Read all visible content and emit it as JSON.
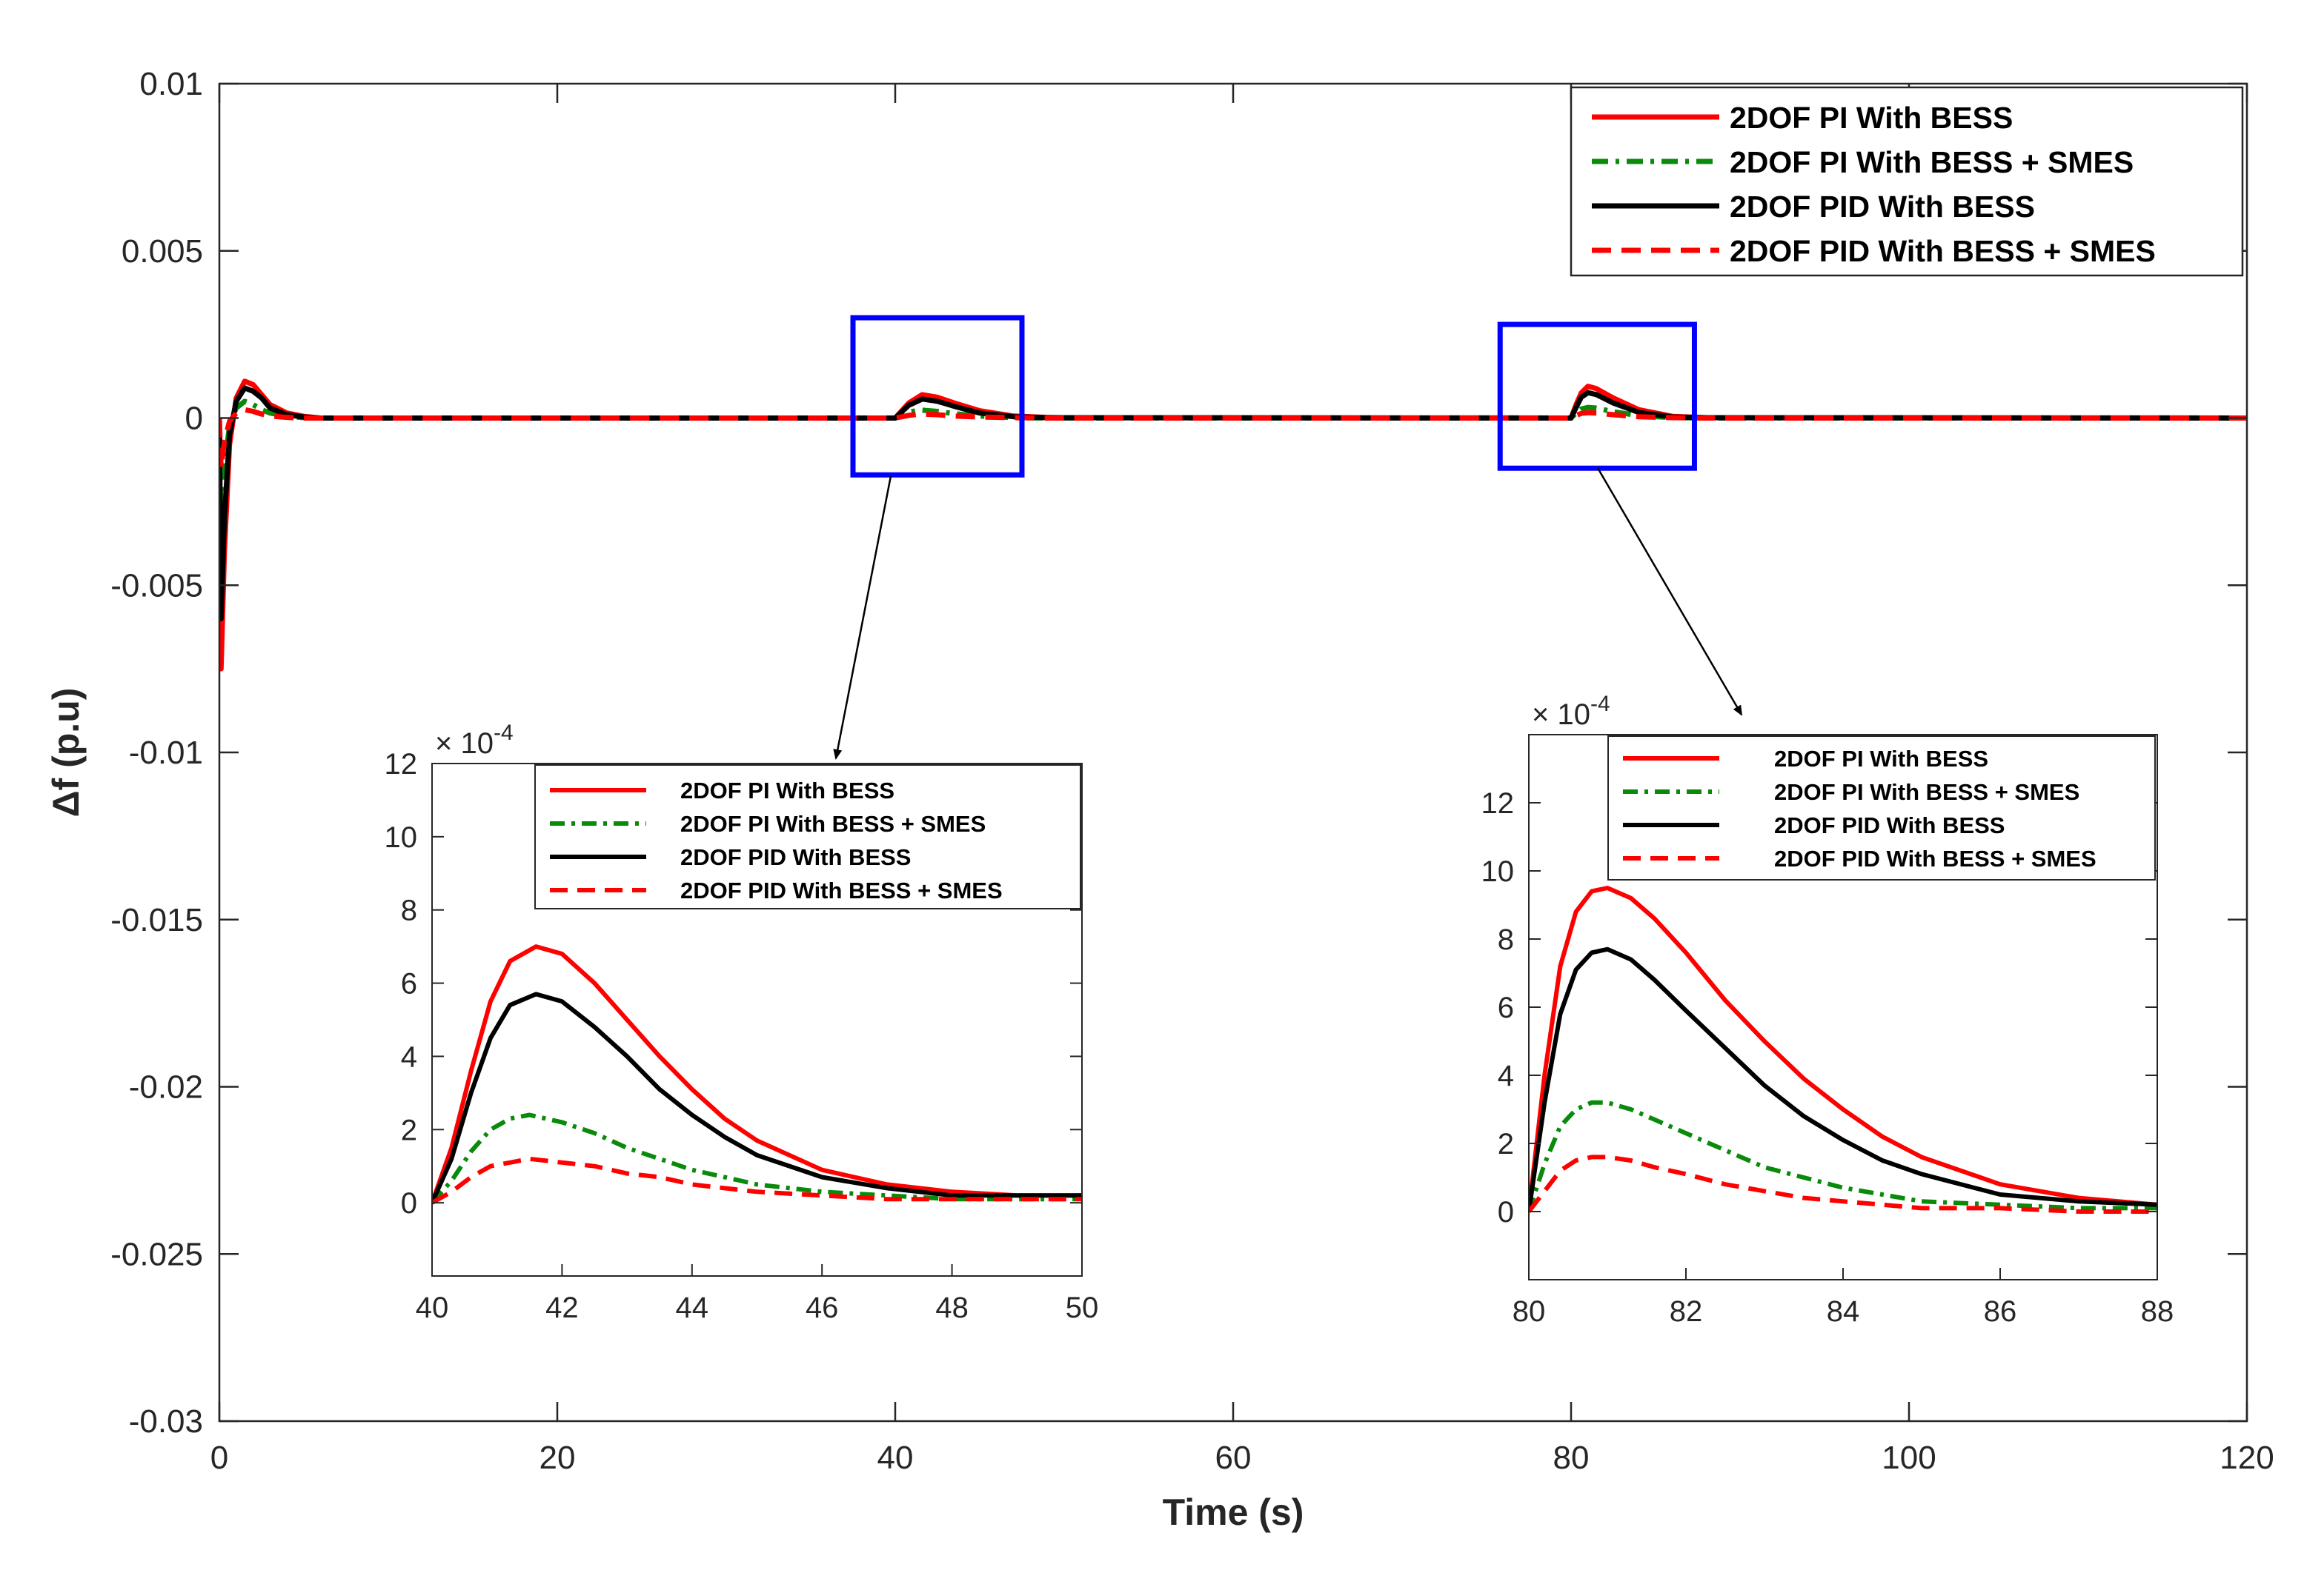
{
  "colors": {
    "red": "#ff0000",
    "green": "#0a8a0a",
    "black": "#000000",
    "axis": "#262626",
    "zoom_box": "#0000ff"
  },
  "chart_data": [
    {
      "type": "line",
      "title": "",
      "xlabel": "Time (s)",
      "ylabel": "Δf (p.u)",
      "xlim": [
        0,
        120
      ],
      "ylim": [
        -0.03,
        0.01
      ],
      "xticks": [
        0,
        20,
        40,
        60,
        80,
        100,
        120
      ],
      "xtick_labels": [
        "0",
        "20",
        "40",
        "60",
        "80",
        "100",
        "120"
      ],
      "yticks": [
        0.01,
        0.005,
        0,
        -0.005,
        -0.01,
        -0.015,
        -0.02,
        -0.025,
        -0.03
      ],
      "ytick_labels": [
        "0.01",
        "0.005",
        "0",
        "-0.005",
        "-0.01",
        "-0.015",
        "-0.02",
        "-0.025",
        "-0.03"
      ],
      "grid": false,
      "legend_position": "top-right",
      "series": [
        {
          "name": "2DOF PI With BESS",
          "color": "#ff0000",
          "style": "solid",
          "x": [
            0,
            0.1,
            0.3,
            0.6,
            1.0,
            1.5,
            2.0,
            2.5,
            3.0,
            4.0,
            5.0,
            6.0,
            8.0,
            40,
            40.8,
            41.6,
            42.5,
            43.5,
            45,
            47,
            49,
            50,
            80,
            80.3,
            80.6,
            81.0,
            81.5,
            82.5,
            84,
            86,
            88,
            120
          ],
          "y": [
            0,
            -0.0075,
            -0.004,
            -0.0008,
            0.0006,
            0.0011,
            0.001,
            0.0007,
            0.0004,
            0.00015,
            5e-05,
            0,
            0,
            0,
            0.00045,
            0.0007,
            0.00062,
            0.00045,
            0.00022,
            6e-05,
            2e-05,
            1e-05,
            0,
            0.0004,
            0.00075,
            0.00095,
            0.00088,
            0.0006,
            0.00025,
            5e-05,
            1e-05,
            0
          ]
        },
        {
          "name": "2DOF PI With BESS + SMES",
          "color": "#0a8a0a",
          "style": "dashdot",
          "x": [
            0,
            0.1,
            0.3,
            0.6,
            1.0,
            1.5,
            2.0,
            2.5,
            3.0,
            4.0,
            5.0,
            6.0,
            8.0,
            40,
            40.8,
            41.5,
            42.5,
            43.5,
            45,
            47,
            49,
            50,
            80,
            80.3,
            80.6,
            81.0,
            81.5,
            82.5,
            84,
            86,
            88,
            120
          ],
          "y": [
            0,
            -0.003,
            -0.0015,
            -0.0002,
            0.0003,
            0.0005,
            0.0004,
            0.00025,
            0.00015,
            5e-05,
            1e-05,
            0,
            0,
            0,
            0.00018,
            0.00024,
            0.0002,
            0.00013,
            6e-05,
            1e-05,
            0,
            0,
            0,
            0.00015,
            0.00027,
            0.00032,
            0.0003,
            0.00019,
            7e-05,
            1e-05,
            0,
            0
          ]
        },
        {
          "name": "2DOF PID With BESS",
          "color": "#000000",
          "style": "solid",
          "x": [
            0,
            0.1,
            0.3,
            0.6,
            1.0,
            1.5,
            2.0,
            2.5,
            3.0,
            4.0,
            5.0,
            6.0,
            8.0,
            40,
            40.8,
            41.6,
            42.5,
            43.5,
            45,
            47,
            49,
            50,
            80,
            80.3,
            80.6,
            81.0,
            81.5,
            82.5,
            84,
            86,
            88,
            120
          ],
          "y": [
            0,
            -0.006,
            -0.003,
            -0.0005,
            0.0005,
            0.0009,
            0.0008,
            0.0006,
            0.0003,
            0.0001,
            3e-05,
            0,
            0,
            0,
            0.00038,
            0.00057,
            0.0005,
            0.00035,
            0.00015,
            4e-05,
            1e-05,
            1e-05,
            0,
            0.00032,
            0.00062,
            0.00076,
            0.0007,
            0.00045,
            0.00017,
            3e-05,
            1e-05,
            0
          ]
        },
        {
          "name": "2DOF PID With BESS + SMES",
          "color": "#ff0000",
          "style": "dashed",
          "x": [
            0,
            0.1,
            0.3,
            0.6,
            1.0,
            1.5,
            2.0,
            2.5,
            3.0,
            4.0,
            5.0,
            6.0,
            8.0,
            40,
            40.8,
            41.5,
            42.5,
            43.5,
            45,
            47,
            49,
            50,
            80,
            80.3,
            80.6,
            81.0,
            81.5,
            82.5,
            84,
            86,
            88,
            120
          ],
          "y": [
            0,
            -0.0015,
            -0.0007,
            -0.0001,
            0.00015,
            0.00025,
            0.0002,
            0.00012,
            6e-05,
            2e-05,
            0,
            0,
            0,
            0,
            8e-05,
            0.00012,
            0.0001,
            6e-05,
            3e-05,
            1e-05,
            0,
            0,
            0,
            8e-05,
            0.00014,
            0.00016,
            0.00015,
            0.0001,
            4e-05,
            1e-05,
            0,
            0
          ]
        }
      ]
    },
    {
      "type": "line",
      "xlim": [
        40,
        50
      ],
      "ylim": [
        -0.0002,
        0.0012
      ],
      "xticks": [
        40,
        42,
        44,
        46,
        48,
        50
      ],
      "xtick_labels": [
        "40",
        "42",
        "44",
        "46",
        "48",
        "50"
      ],
      "yticks": [
        0,
        2,
        4,
        6,
        8,
        10,
        12
      ],
      "ytick_labels": [
        "0",
        "2",
        "4",
        "6",
        "8",
        "10",
        "12"
      ],
      "exponent_label": "× 10",
      "exponent_power": "-4",
      "legend_position": "top-right",
      "series": [
        {
          "name": "2DOF PI With BESS",
          "color": "#ff0000",
          "style": "solid",
          "x": [
            40,
            40.3,
            40.6,
            40.9,
            41.2,
            41.6,
            42.0,
            42.5,
            43.0,
            43.5,
            44,
            44.5,
            45,
            46,
            47,
            48,
            49,
            50
          ],
          "y": [
            0,
            0.00015,
            0.00036,
            0.00055,
            0.00066,
            0.0007,
            0.00068,
            0.0006,
            0.0005,
            0.0004,
            0.00031,
            0.00023,
            0.00017,
            9e-05,
            5e-05,
            3e-05,
            2e-05,
            2e-05
          ]
        },
        {
          "name": "2DOF PI With BESS + SMES",
          "color": "#0a8a0a",
          "style": "dashdot",
          "x": [
            40,
            40.3,
            40.6,
            40.9,
            41.2,
            41.5,
            42.0,
            42.5,
            43.0,
            43.5,
            44,
            44.5,
            45,
            46,
            47,
            48,
            49,
            50
          ],
          "y": [
            0,
            6e-05,
            0.00014,
            0.0002,
            0.00023,
            0.00024,
            0.00022,
            0.00019,
            0.00015,
            0.00012,
            9e-05,
            7e-05,
            5e-05,
            3e-05,
            2e-05,
            1e-05,
            1e-05,
            1e-05
          ]
        },
        {
          "name": "2DOF PID With BESS",
          "color": "#000000",
          "style": "solid",
          "x": [
            40,
            40.3,
            40.6,
            40.9,
            41.2,
            41.6,
            42.0,
            42.5,
            43.0,
            43.5,
            44,
            44.5,
            45,
            46,
            47,
            48,
            49,
            50
          ],
          "y": [
            0,
            0.00012,
            0.0003,
            0.00045,
            0.00054,
            0.00057,
            0.00055,
            0.00048,
            0.0004,
            0.00031,
            0.00024,
            0.00018,
            0.00013,
            7e-05,
            4e-05,
            2e-05,
            2e-05,
            2e-05
          ]
        },
        {
          "name": "2DOF PID With BESS + SMES",
          "color": "#ff0000",
          "style": "dashed",
          "x": [
            40,
            40.3,
            40.6,
            40.9,
            41.2,
            41.5,
            42.0,
            42.5,
            43.0,
            43.5,
            44,
            44.5,
            45,
            46,
            47,
            48,
            49,
            50
          ],
          "y": [
            0,
            3e-05,
            7e-05,
            0.0001,
            0.00011,
            0.00012,
            0.00011,
            0.0001,
            8e-05,
            7e-05,
            5e-05,
            4e-05,
            3e-05,
            2e-05,
            1e-05,
            1e-05,
            1e-05,
            1e-05
          ]
        }
      ]
    },
    {
      "type": "line",
      "xlim": [
        80,
        88
      ],
      "ylim": [
        -0.0002,
        0.0014
      ],
      "xticks": [
        80,
        82,
        84,
        86,
        88
      ],
      "xtick_labels": [
        "80",
        "82",
        "84",
        "86",
        "88"
      ],
      "yticks": [
        0,
        2,
        4,
        6,
        8,
        10,
        12
      ],
      "ytick_labels": [
        "0",
        "2",
        "4",
        "6",
        "8",
        "10",
        "12"
      ],
      "exponent_label": "× 10",
      "exponent_power": "-4",
      "legend_position": "top-right",
      "series": [
        {
          "name": "2DOF PI With BESS",
          "color": "#ff0000",
          "style": "solid",
          "x": [
            80,
            80.2,
            80.4,
            80.6,
            80.8,
            81.0,
            81.3,
            81.6,
            82.0,
            82.5,
            83,
            83.5,
            84,
            84.5,
            85,
            86,
            87,
            88
          ],
          "y": [
            0,
            0.0004,
            0.00072,
            0.00088,
            0.00094,
            0.00095,
            0.00092,
            0.00086,
            0.00076,
            0.00062,
            0.0005,
            0.00039,
            0.0003,
            0.00022,
            0.00016,
            8e-05,
            4e-05,
            2e-05
          ]
        },
        {
          "name": "2DOF PI With BESS + SMES",
          "color": "#0a8a0a",
          "style": "dashdot",
          "x": [
            80,
            80.2,
            80.4,
            80.6,
            80.8,
            81.0,
            81.3,
            81.6,
            82.0,
            82.5,
            83,
            83.5,
            84,
            84.5,
            85,
            86,
            87,
            88
          ],
          "y": [
            0,
            0.00014,
            0.00025,
            0.0003,
            0.00032,
            0.00032,
            0.0003,
            0.00027,
            0.00023,
            0.00018,
            0.00013,
            0.0001,
            7e-05,
            5e-05,
            3e-05,
            2e-05,
            1e-05,
            1e-05
          ]
        },
        {
          "name": "2DOF PID With BESS",
          "color": "#000000",
          "style": "solid",
          "x": [
            80,
            80.2,
            80.4,
            80.6,
            80.8,
            81.0,
            81.3,
            81.6,
            82.0,
            82.5,
            83,
            83.5,
            84,
            84.5,
            85,
            86,
            87,
            88
          ],
          "y": [
            0,
            0.00032,
            0.00058,
            0.00071,
            0.00076,
            0.00077,
            0.00074,
            0.00068,
            0.00059,
            0.00048,
            0.00037,
            0.00028,
            0.00021,
            0.00015,
            0.00011,
            5e-05,
            3e-05,
            2e-05
          ]
        },
        {
          "name": "2DOF PID With BESS + SMES",
          "color": "#ff0000",
          "style": "dashed",
          "x": [
            80,
            80.2,
            80.4,
            80.6,
            80.8,
            81.0,
            81.3,
            81.6,
            82.0,
            82.5,
            83,
            83.5,
            84,
            84.5,
            85,
            86,
            87,
            88
          ],
          "y": [
            0,
            6e-05,
            0.00012,
            0.00015,
            0.00016,
            0.00016,
            0.00015,
            0.00013,
            0.00011,
            8e-05,
            6e-05,
            4e-05,
            3e-05,
            2e-05,
            1e-05,
            1e-05,
            0,
            0
          ]
        }
      ]
    }
  ]
}
